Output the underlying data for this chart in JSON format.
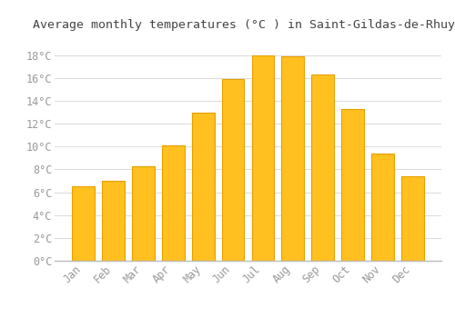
{
  "title": "Average monthly temperatures (°C ) in Saint-Gildas-de-Rhuys",
  "months": [
    "Jan",
    "Feb",
    "Mar",
    "Apr",
    "May",
    "Jun",
    "Jul",
    "Aug",
    "Sep",
    "Oct",
    "Nov",
    "Dec"
  ],
  "temperatures": [
    6.5,
    7.0,
    8.3,
    10.1,
    13.0,
    15.9,
    18.0,
    17.9,
    16.3,
    13.3,
    9.4,
    7.4
  ],
  "bar_color": "#FFC020",
  "bar_edge_color": "#E8A000",
  "background_color": "#FFFFFF",
  "grid_color": "#DDDDDD",
  "title_color": "#444444",
  "tick_color": "#999999",
  "ylim": [
    0,
    19.5
  ],
  "yticks": [
    0,
    2,
    4,
    6,
    8,
    10,
    12,
    14,
    16,
    18
  ],
  "title_fontsize": 9.5,
  "tick_fontsize": 8.5
}
